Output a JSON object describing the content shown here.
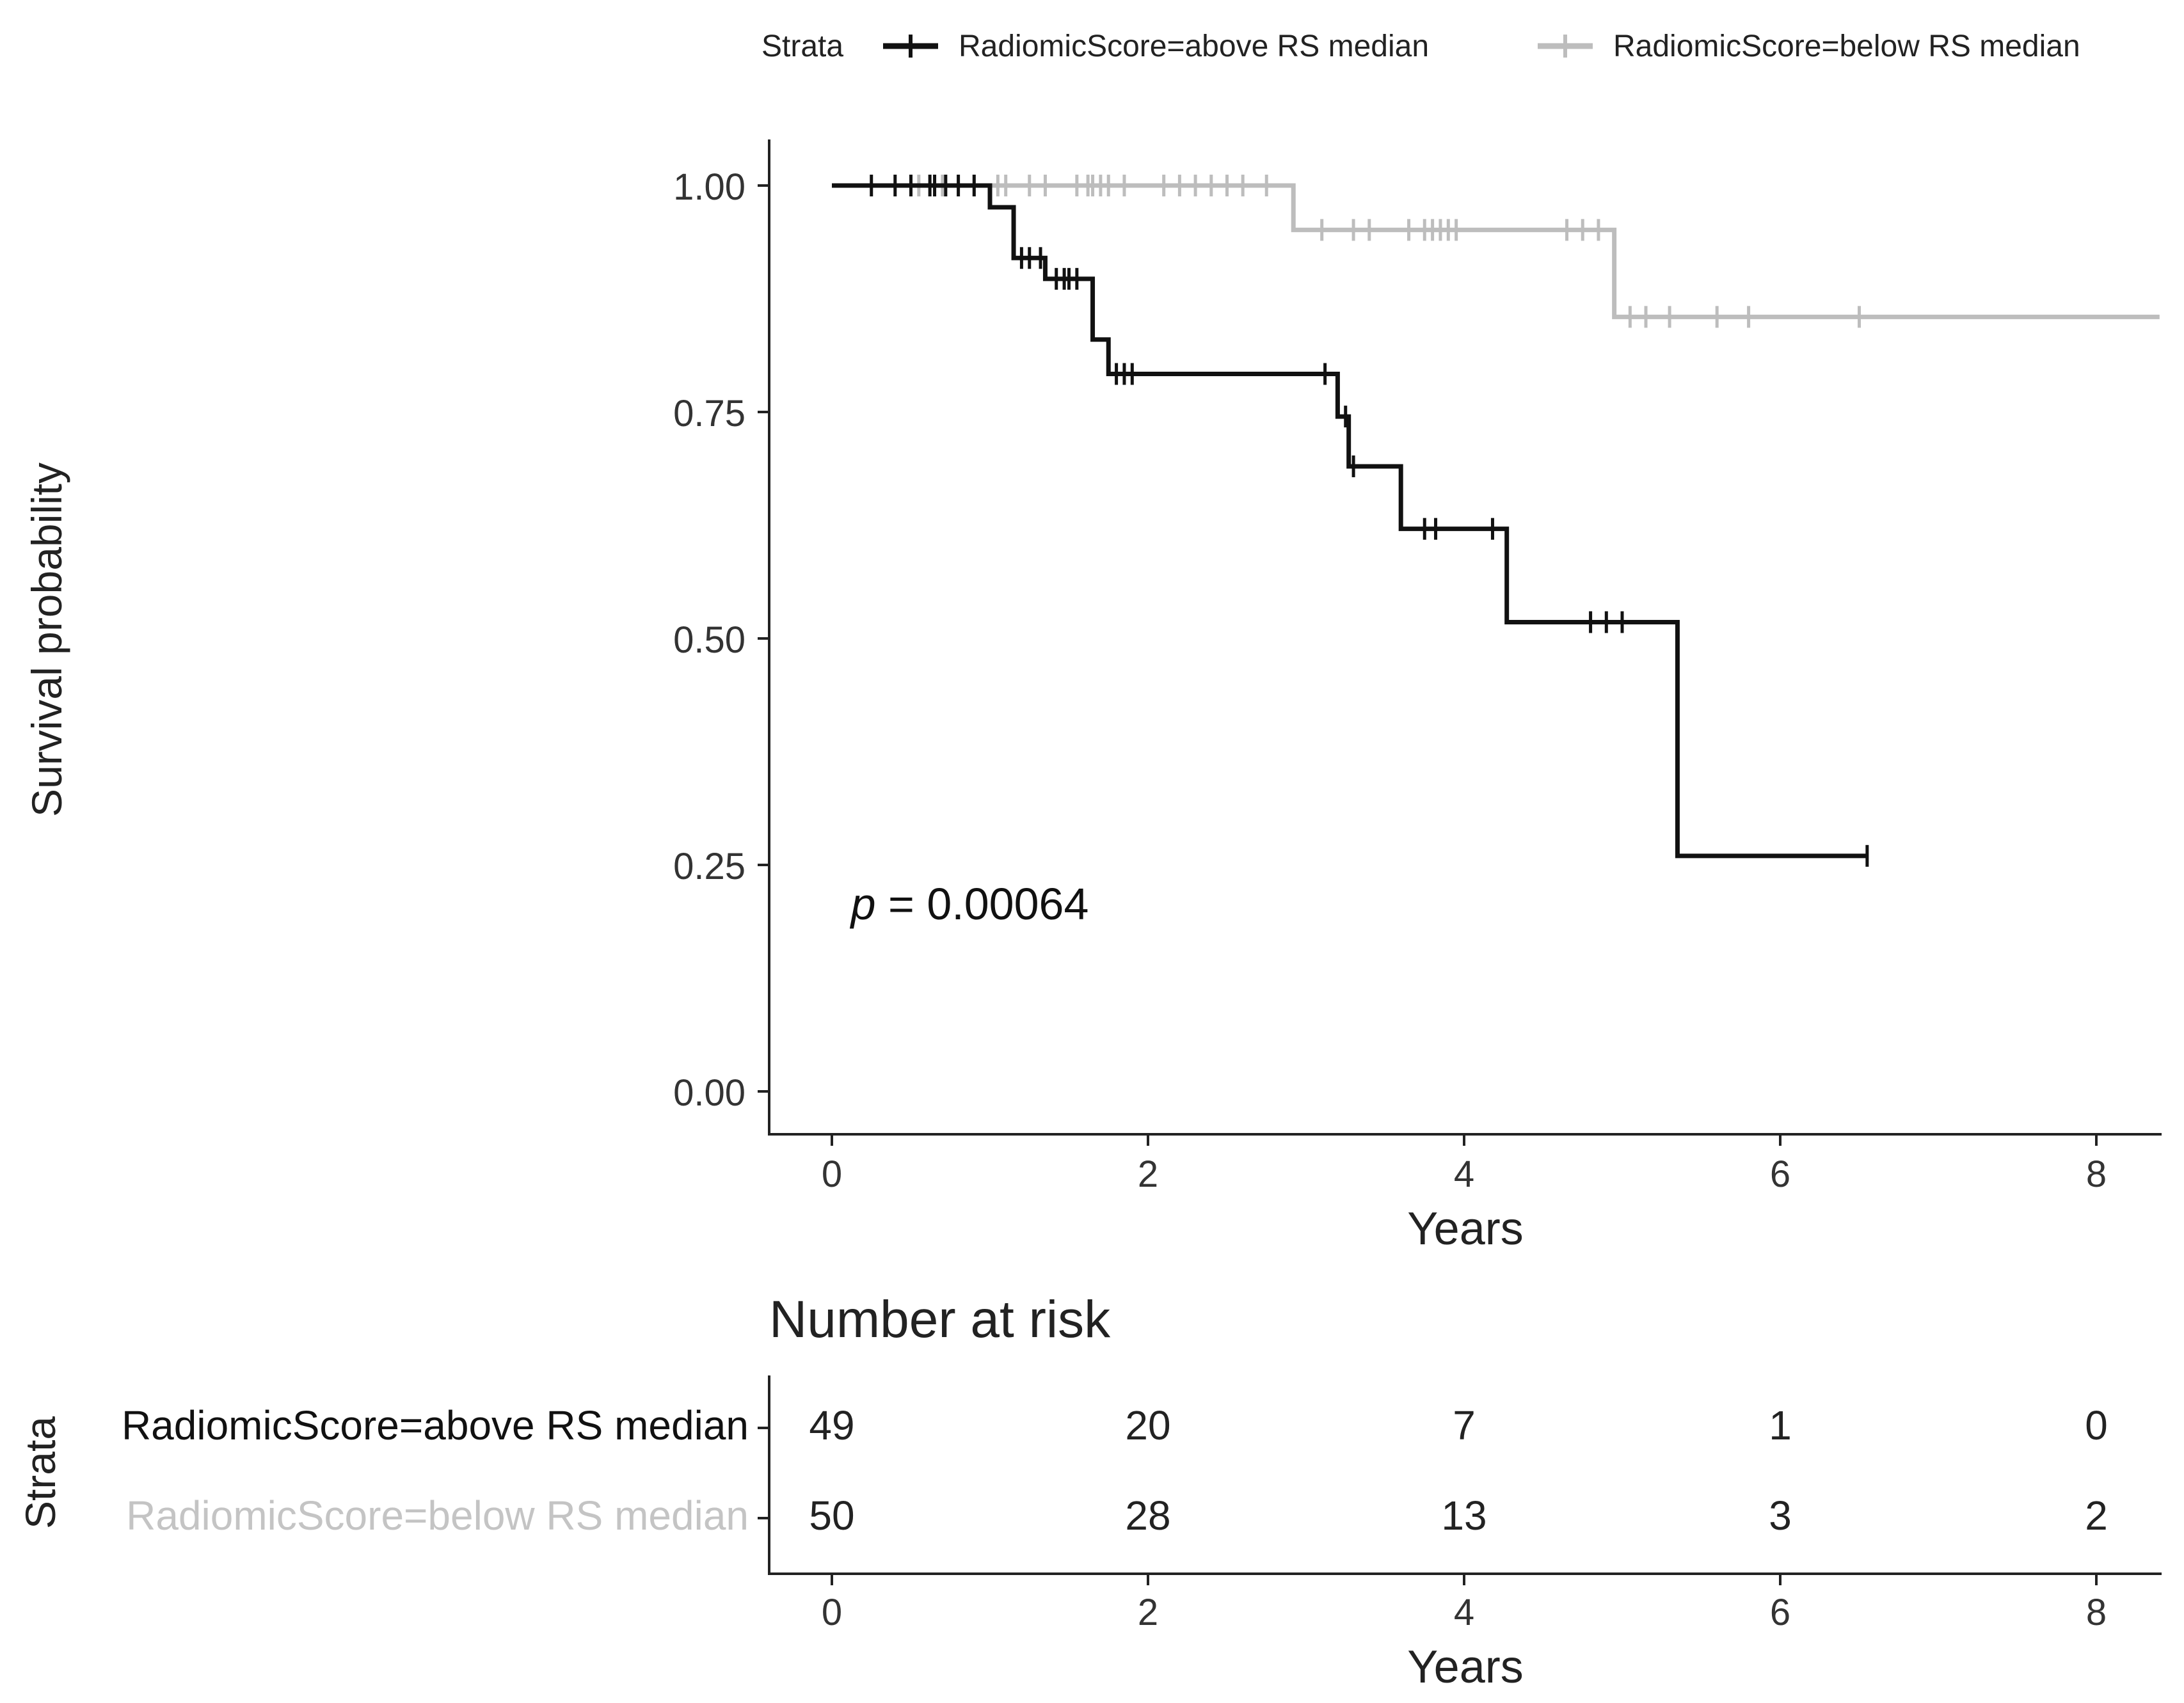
{
  "chart_data": {
    "type": "line",
    "subtype": "kaplan-meier",
    "legend": {
      "title": "Strata",
      "position": "top",
      "entries": [
        "RadiomicScore=above RS median",
        "RadiomicScore=below RS median"
      ]
    },
    "xlabel": "Years",
    "ylabel": "Survival probability",
    "xlim": [
      -0.4,
      8.4
    ],
    "ylim": [
      -0.05,
      1.05
    ],
    "x_ticks": [
      0,
      2,
      4,
      6,
      8
    ],
    "x_tick_labels": [
      "0",
      "2",
      "4",
      "6",
      "8"
    ],
    "y_ticks": [
      0,
      0.25,
      0.5,
      0.75,
      1.0
    ],
    "y_tick_labels": [
      "0.00",
      "0.25",
      "0.50",
      "0.75",
      "1.00"
    ],
    "annotation": {
      "p_symbol": "p",
      "p_text": " = 0.00064",
      "x": 0.12,
      "y": 0.19
    },
    "series": [
      {
        "name": "RadiomicScore=above RS median",
        "color": "#111111",
        "steps": [
          [
            0,
            1.0
          ],
          [
            1.0,
            0.976
          ],
          [
            1.15,
            0.92
          ],
          [
            1.35,
            0.897
          ],
          [
            1.65,
            0.83
          ],
          [
            1.75,
            0.792
          ],
          [
            3.2,
            0.745
          ],
          [
            3.27,
            0.69
          ],
          [
            3.6,
            0.621
          ],
          [
            4.27,
            0.518
          ],
          [
            5.35,
            0.26
          ],
          [
            6.55,
            0.26
          ]
        ],
        "censor_times": [
          0.25,
          0.4,
          0.5,
          0.62,
          0.65,
          0.72,
          0.8,
          0.9,
          1.2,
          1.25,
          1.32,
          1.42,
          1.47,
          1.5,
          1.55,
          1.8,
          1.85,
          1.9,
          3.12,
          3.25,
          3.3,
          3.75,
          3.82,
          4.18,
          4.8,
          4.9,
          5.0,
          6.55
        ]
      },
      {
        "name": "RadiomicScore=below RS median",
        "color": "#bdbdbd",
        "steps": [
          [
            0,
            1.0
          ],
          [
            2.92,
            0.951
          ],
          [
            4.95,
            0.855
          ],
          [
            8.4,
            0.855
          ]
        ],
        "censor_times": [
          0.5,
          0.55,
          0.7,
          0.8,
          0.9,
          1.05,
          1.1,
          1.25,
          1.35,
          1.55,
          1.62,
          1.65,
          1.7,
          1.75,
          1.85,
          2.1,
          2.2,
          2.3,
          2.4,
          2.5,
          2.6,
          2.75,
          3.1,
          3.3,
          3.4,
          3.65,
          3.75,
          3.8,
          3.85,
          3.9,
          3.95,
          4.65,
          4.75,
          4.85,
          5.05,
          5.15,
          5.3,
          5.6,
          5.8,
          6.5
        ]
      }
    ],
    "risk_table": {
      "title": "Number at risk",
      "ylabel": "Strata",
      "xlabel": "Years",
      "times": [
        0,
        2,
        4,
        6,
        8
      ],
      "time_labels": [
        "0",
        "2",
        "4",
        "6",
        "8"
      ],
      "rows": [
        {
          "label": "RadiomicScore=above RS median",
          "color": "#111111",
          "counts": [
            "49",
            "20",
            "7",
            "1",
            "0"
          ]
        },
        {
          "label": "RadiomicScore=below RS median",
          "color": "#c4c4c4",
          "counts": [
            "50",
            "28",
            "13",
            "3",
            "2"
          ]
        }
      ]
    }
  }
}
